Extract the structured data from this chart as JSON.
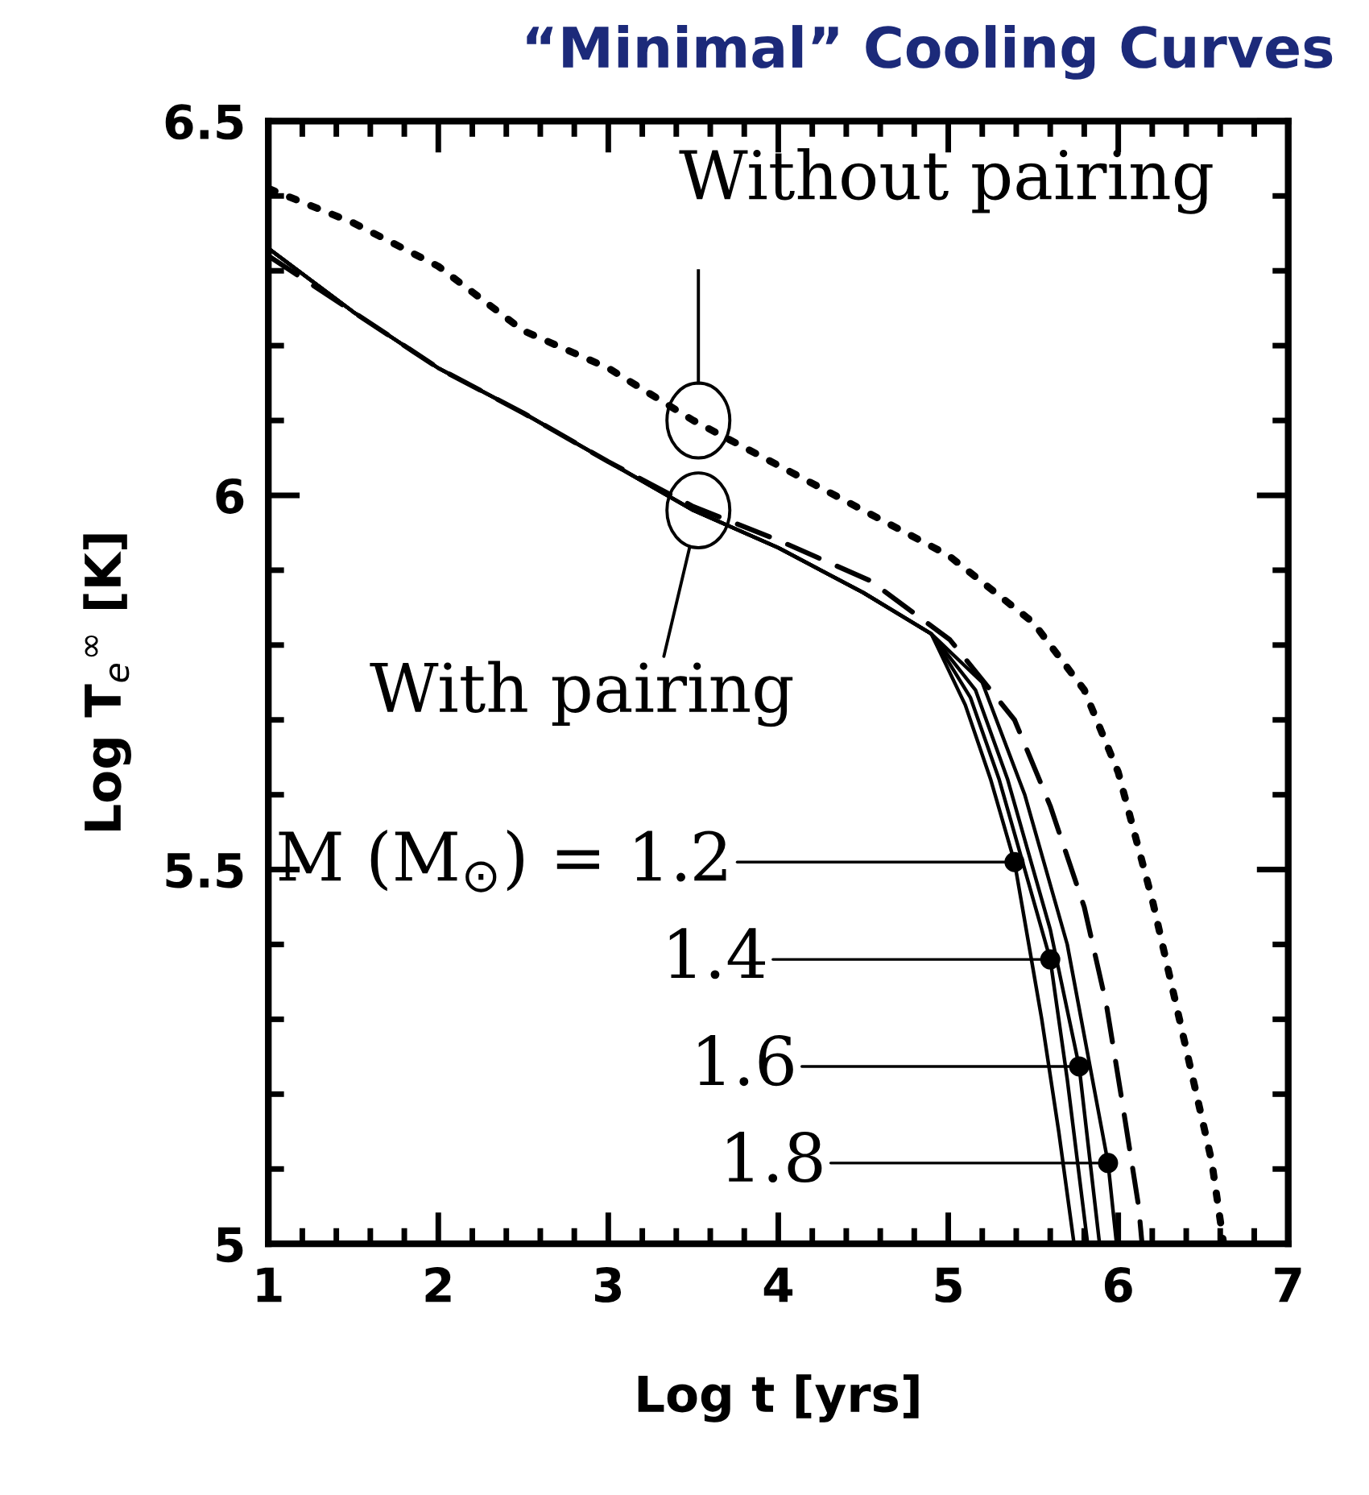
{
  "chart_data": {
    "type": "line",
    "title": "“Minimal” Cooling Curves",
    "xlabel": "Log t [yrs]",
    "ylabel": "Log T$_{e}$$^{∞}$ [K]",
    "xlim": [
      1,
      7
    ],
    "ylim": [
      5,
      6.5
    ],
    "xticks": [
      1,
      2,
      3,
      4,
      5,
      6,
      7
    ],
    "yticks": [
      5,
      5.5,
      6,
      6.5
    ],
    "grid": false,
    "legend": false,
    "marker": "none",
    "series": [
      {
        "color": "#000000",
        "line_style": "dotted",
        "x": [
          1,
          1.5,
          2,
          2.5,
          3,
          3.5,
          4,
          4.5,
          5,
          5.5,
          5.8,
          6,
          6.2,
          6.4,
          6.55,
          6.62
        ],
        "values": [
          6.41,
          6.364,
          6.306,
          6.22,
          6.17,
          6.1,
          6.04,
          5.98,
          5.92,
          5.83,
          5.74,
          5.63,
          5.46,
          5.26,
          5.11,
          5.0
        ]
      },
      {
        "color": "#000000",
        "line_style": "dashed",
        "x": [
          1,
          1.5,
          2,
          2.5,
          3,
          3.5,
          4,
          4.54,
          5.01,
          5.39,
          5.6,
          5.8,
          5.93,
          6.03,
          6.12,
          6.14
        ],
        "values": [
          6.32,
          6.245,
          6.17,
          6.11,
          6.045,
          5.985,
          5.94,
          5.886,
          5.807,
          5.7,
          5.585,
          5.45,
          5.32,
          5.18,
          5.05,
          5.0
        ]
      },
      {
        "color": "#000000",
        "line_style": "solid",
        "x": [
          1,
          1.5,
          2,
          2.5,
          3,
          3.5,
          4,
          4.5,
          4.9,
          5.1,
          5.25,
          5.39,
          5.55,
          5.65,
          5.74
        ],
        "values": [
          6.33,
          6.245,
          6.17,
          6.11,
          6.045,
          5.98,
          5.93,
          5.87,
          5.815,
          5.72,
          5.62,
          5.51,
          5.3,
          5.15,
          5.0
        ]
      },
      {
        "color": "#000000",
        "line_style": "solid",
        "x": [
          1,
          1.5,
          2,
          2.5,
          3,
          3.5,
          4,
          4.5,
          4.9,
          5.13,
          5.3,
          5.6,
          5.7,
          5.82
        ],
        "values": [
          6.33,
          6.245,
          6.17,
          6.11,
          6.045,
          5.98,
          5.93,
          5.87,
          5.815,
          5.73,
          5.62,
          5.38,
          5.22,
          5.0
        ]
      },
      {
        "color": "#000000",
        "line_style": "solid",
        "x": [
          1,
          1.5,
          2,
          2.5,
          3,
          3.5,
          4,
          4.5,
          4.9,
          5.16,
          5.35,
          5.6,
          5.77,
          5.89
        ],
        "values": [
          6.33,
          6.245,
          6.17,
          6.11,
          6.045,
          5.98,
          5.93,
          5.87,
          5.815,
          5.74,
          5.62,
          5.42,
          5.237,
          5.0
        ]
      },
      {
        "color": "#000000",
        "line_style": "solid",
        "x": [
          1,
          1.5,
          2,
          2.5,
          3,
          3.5,
          4,
          4.5,
          4.9,
          5.2,
          5.45,
          5.7,
          5.94,
          5.99
        ],
        "values": [
          6.33,
          6.245,
          6.17,
          6.11,
          6.045,
          5.98,
          5.93,
          5.87,
          5.815,
          5.75,
          5.6,
          5.4,
          5.108,
          5.0
        ]
      },
      {
        "type": "scatter",
        "marker": "circle",
        "color": "#000000",
        "x": [
          5.39,
          5.6,
          5.77,
          5.94
        ],
        "values": [
          5.51,
          5.38,
          5.237,
          5.108
        ]
      }
    ],
    "annotations": [
      "Without pairing",
      {
        "text": "With pairing",
        "x": 3.53,
        "y": 5.98
      },
      {
        "text": "M (M$_{⊙}$) = 1.2",
        "x": 5.39,
        "y": 5.51
      },
      "1.4",
      "1.6",
      "1.8"
    ]
  }
}
